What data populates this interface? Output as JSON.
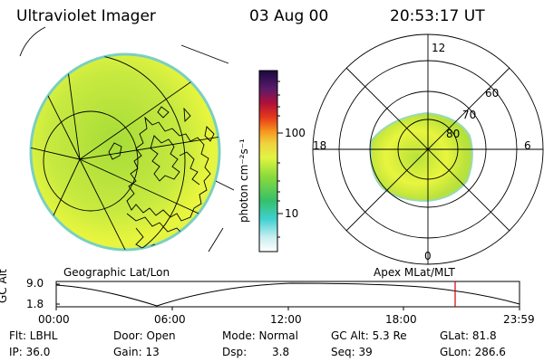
{
  "header": {
    "title": "Ultraviolet Imager",
    "date": "03 Aug 00",
    "time": "20:53:17 UT"
  },
  "left_panel": {
    "caption": "Geographic Lat/Lon"
  },
  "right_panel": {
    "caption": "Apex MLat/MLT",
    "mlt_labels": {
      "top": "12",
      "left": "18",
      "right": "6",
      "bottom": "0"
    },
    "lat_labels": [
      "60",
      "70",
      "80"
    ]
  },
  "colorbar": {
    "unit_label": "photon cm⁻²s⁻¹",
    "tick_labels": [
      "100",
      "10"
    ]
  },
  "altitude_plot": {
    "ylabel": "GC Alt",
    "yticks": [
      "9.0",
      "1.8"
    ],
    "xticks": [
      "00:00",
      "06:00",
      "12:00",
      "18:00",
      "23:59"
    ],
    "marker_time": "20:53",
    "marker_color": "#d00000"
  },
  "info": {
    "row1": [
      "Flt: LBHL",
      "Door: Open",
      "Mode: Normal",
      "GC Alt: 5.3 Re",
      "GLat: 81.8"
    ],
    "row2": [
      "IP: 36.0",
      "Gain: 13",
      "Dsp:",
      "3.8",
      "Seq: 39",
      "GLon: 286.6"
    ]
  },
  "colors": {
    "aurora_green": "#9fdd3a",
    "aurora_yellow": "#e6f542",
    "line": "#000000"
  }
}
